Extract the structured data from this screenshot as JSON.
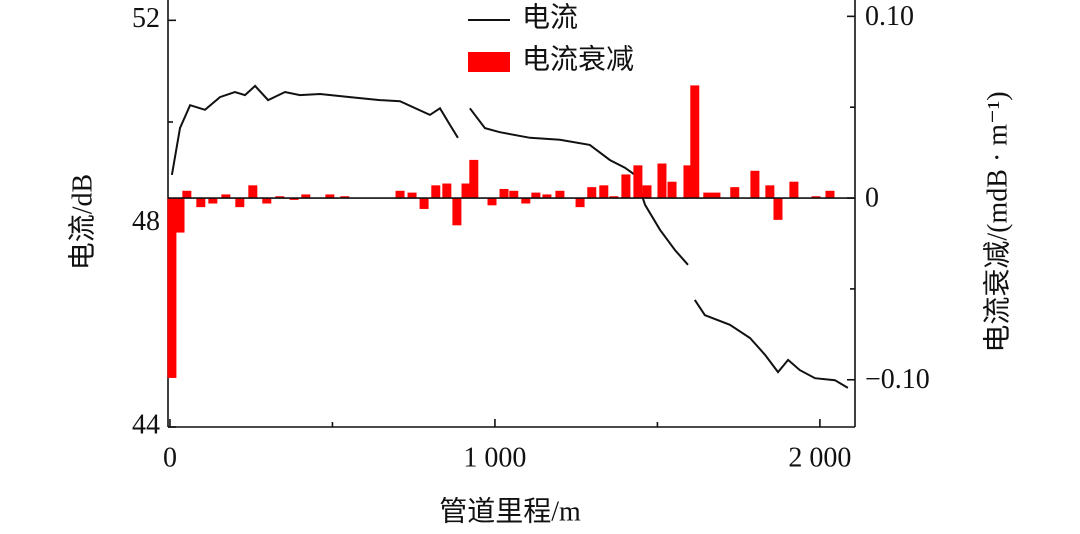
{
  "chart_data": {
    "type": "combo",
    "x_label": "管道里程/m",
    "y_label": "电流/dB",
    "y2_label": "电流衰减/(mdB · m⁻¹)",
    "xlim": [
      -6,
      2108
    ],
    "xticks": [
      0,
      {
        "value": 1000,
        "label": "1 000"
      },
      {
        "value": 2000,
        "label": "2 000"
      }
    ],
    "xminorticks": [
      500,
      1500
    ],
    "ylim": [
      44,
      52.4
    ],
    "yticks": [
      44,
      48,
      52
    ],
    "yminorticks": [
      46,
      50
    ],
    "y2lim": [
      -0.126,
      0.109
    ],
    "y2ticks": [
      {
        "value": 0.1,
        "label": "0.10"
      },
      0,
      {
        "value": -0.1,
        "label": "−0.10"
      }
    ],
    "y2minorticks": [
      0.05,
      -0.05
    ],
    "legend": "top",
    "series": [
      {
        "name": "电流",
        "type": "line",
        "color": "#111111",
        "x": [
          6,
          31,
          62,
          108,
          154,
          200,
          231,
          262,
          302,
          354,
          400,
          462,
          554,
          646,
          708,
          800,
          831,
          862,
          886,
          900,
          923,
          969,
          1015,
          1108,
          1200,
          1292,
          1354,
          1400,
          1431,
          1462,
          1508,
          1554,
          1594,
          1605,
          1615,
          1646,
          1723,
          1785,
          1831,
          1871,
          1902,
          1938,
          1985,
          2046,
          2086
        ],
        "values": [
          48.96,
          49.88,
          50.33,
          50.24,
          50.49,
          50.59,
          50.53,
          50.71,
          50.43,
          50.59,
          50.53,
          50.55,
          50.49,
          50.43,
          50.41,
          50.14,
          50.27,
          49.94,
          49.69,
          null,
          50.27,
          49.88,
          49.8,
          49.69,
          49.65,
          49.55,
          49.25,
          49.1,
          48.96,
          48.37,
          47.88,
          47.48,
          47.19,
          null,
          46.5,
          46.2,
          46.01,
          45.75,
          45.42,
          45.08,
          45.32,
          45.12,
          44.96,
          44.92,
          44.77
        ]
      },
      {
        "name": "电流衰减",
        "type": "bar",
        "axis": "y2",
        "color": "#ff0000",
        "x": [
          6,
          31,
          52,
          95,
          132,
          172,
          215,
          255,
          298,
          338,
          382,
          418,
          492,
          538,
          708,
          745,
          782,
          818,
          852,
          883,
          911,
          935,
          991,
          1028,
          1058,
          1095,
          1126,
          1160,
          1200,
          1262,
          1298,
          1335,
          1366,
          1403,
          1440,
          1468,
          1514,
          1545,
          1594,
          1615,
          1655,
          1680,
          1738,
          1800,
          1846,
          1871,
          1920,
          1988,
          2031
        ],
        "values": [
          -0.099,
          -0.019,
          0.004,
          -0.005,
          -0.003,
          0.002,
          -0.005,
          0.007,
          -0.003,
          0.001,
          -0.001,
          0.002,
          0.002,
          0.001,
          0.004,
          0.003,
          -0.006,
          0.007,
          0.008,
          -0.015,
          0.008,
          0.021,
          -0.004,
          0.005,
          0.004,
          -0.003,
          0.003,
          0.002,
          0.004,
          -0.005,
          0.006,
          0.007,
          0.001,
          0.013,
          0.018,
          0.007,
          0.019,
          0.009,
          0.018,
          0.062,
          0.003,
          0.003,
          0.006,
          0.015,
          0.007,
          -0.012,
          0.009,
          0.001,
          0.004
        ]
      }
    ]
  }
}
